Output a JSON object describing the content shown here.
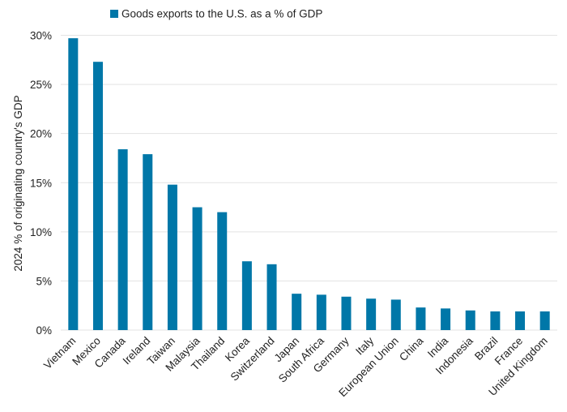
{
  "chart_data": {
    "type": "bar",
    "ylabel": "2024 % of originating country's GDP",
    "xlabel": "",
    "ylim": [
      0,
      30
    ],
    "yticks": [
      0,
      5,
      10,
      15,
      20,
      25,
      30
    ],
    "ytick_labels": [
      "0%",
      "5%",
      "10%",
      "15%",
      "20%",
      "25%",
      "30%"
    ],
    "grid": true,
    "legend_position": "top",
    "categories": [
      "Vietnam",
      "Mexico",
      "Canada",
      "Ireland",
      "Taiwan",
      "Malaysia",
      "Thailand",
      "Korea",
      "Switzerland",
      "Japan",
      "South Africa",
      "Germany",
      "Italy",
      "European Union",
      "China",
      "India",
      "Indonesia",
      "Brazil",
      "France",
      "United Kingdom"
    ],
    "series": [
      {
        "name": "Goods exports to the U.S. as a % of GDP",
        "color": "#0077a8",
        "values": [
          29.7,
          27.3,
          18.4,
          17.9,
          14.8,
          12.5,
          12.0,
          7.0,
          6.7,
          3.7,
          3.6,
          3.4,
          3.2,
          3.1,
          2.3,
          2.2,
          2.0,
          1.9,
          1.9,
          1.9
        ]
      }
    ]
  }
}
